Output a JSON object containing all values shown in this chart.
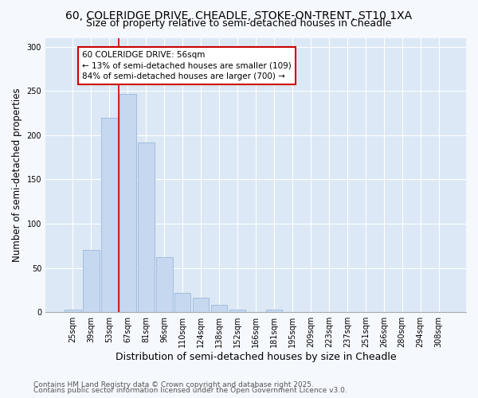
{
  "title_line1": "60, COLERIDGE DRIVE, CHEADLE, STOKE-ON-TRENT, ST10 1XA",
  "title_line2": "Size of property relative to semi-detached houses in Cheadle",
  "xlabel": "Distribution of semi-detached houses by size in Cheadle",
  "ylabel": "Number of semi-detached properties",
  "categories": [
    "25sqm",
    "39sqm",
    "53sqm",
    "67sqm",
    "81sqm",
    "96sqm",
    "110sqm",
    "124sqm",
    "138sqm",
    "152sqm",
    "166sqm",
    "181sqm",
    "195sqm",
    "209sqm",
    "223sqm",
    "237sqm",
    "251sqm",
    "266sqm",
    "280sqm",
    "294sqm",
    "308sqm"
  ],
  "bar_values": [
    3,
    70,
    220,
    247,
    192,
    62,
    22,
    16,
    8,
    3,
    0,
    3,
    0,
    0,
    0,
    0,
    0,
    0,
    0,
    0,
    0
  ],
  "bar_color": "#c5d8f0",
  "bar_edge_color": "#9ab8d8",
  "vline_x": 2.5,
  "vline_color": "#cc0000",
  "annotation_text": "60 COLERIDGE DRIVE: 56sqm\n← 13% of semi-detached houses are smaller (109)\n84% of semi-detached houses are larger (700) →",
  "annotation_box_color": "#ffffff",
  "annotation_box_edge": "#cc0000",
  "ylim": [
    0,
    310
  ],
  "yticks": [
    0,
    50,
    100,
    150,
    200,
    250,
    300
  ],
  "axes_bg_color": "#dce8f5",
  "fig_bg_color": "#f5f8fd",
  "grid_color": "#ffffff",
  "footer_line1": "Contains HM Land Registry data © Crown copyright and database right 2025.",
  "footer_line2": "Contains public sector information licensed under the Open Government Licence v3.0.",
  "title_fontsize": 10,
  "subtitle_fontsize": 9,
  "ylabel_fontsize": 8.5,
  "xlabel_fontsize": 9,
  "tick_fontsize": 7,
  "annotation_fontsize": 7.5,
  "footer_fontsize": 6.5
}
